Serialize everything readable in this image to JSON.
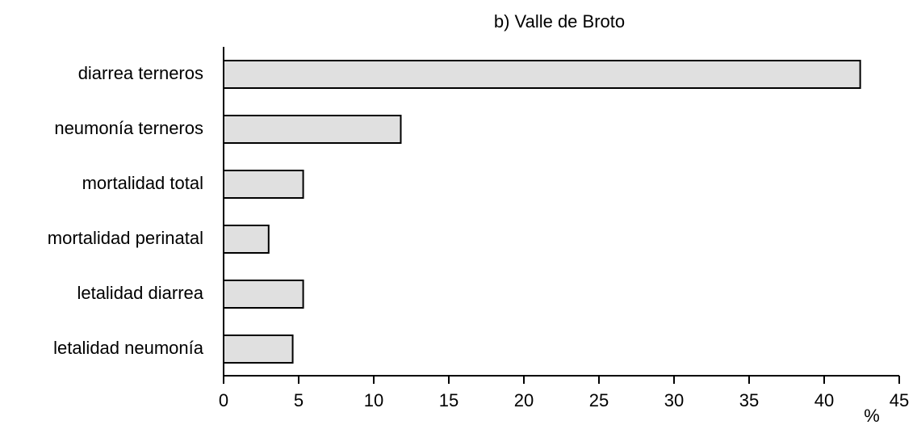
{
  "chart_data": {
    "type": "bar",
    "orientation": "horizontal",
    "title": "b) Valle de Broto",
    "categories": [
      "diarrea terneros",
      "neumonía terneros",
      "mortalidad total",
      "mortalidad perinatal",
      "letalidad diarrea",
      "letalidad neumonía"
    ],
    "values": [
      42.4,
      11.8,
      5.3,
      3.0,
      5.3,
      4.6
    ],
    "color": "#e0e0e0",
    "x_label": "%",
    "xlim": [
      0,
      45
    ],
    "xticks": [
      0,
      5,
      10,
      15,
      20,
      25,
      30,
      35,
      40,
      45
    ],
    "grid": false
  }
}
